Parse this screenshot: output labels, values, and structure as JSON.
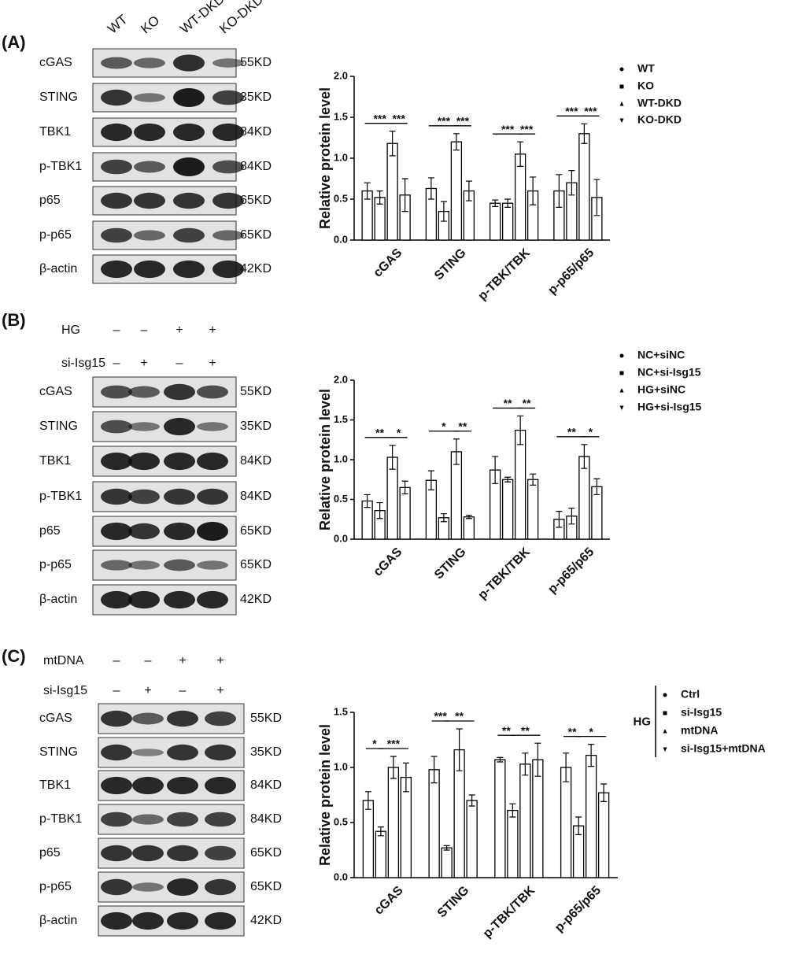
{
  "blots": [
    {
      "label": "(A)",
      "lanes": [
        "WT",
        "KO",
        "WT-DKD",
        "KO-DKD"
      ],
      "treatments": [],
      "proteins": [
        [
          "cGAS",
          "55KD"
        ],
        [
          "STING",
          "35KD"
        ],
        [
          "TBK1",
          "84KD"
        ],
        [
          "p-TBK1",
          "84KD"
        ],
        [
          "p65",
          "65KD"
        ],
        [
          "p-p65",
          "65KD"
        ],
        [
          "β-actin",
          "42KD"
        ]
      ]
    },
    {
      "label": "(B)",
      "lanes": [],
      "treatments": [
        [
          "HG",
          "–",
          "–",
          "+",
          "+"
        ],
        [
          "si-Isg15",
          "–",
          "+",
          "–",
          "+"
        ]
      ],
      "proteins": [
        [
          "cGAS",
          "55KD"
        ],
        [
          "STING",
          "35KD"
        ],
        [
          "TBK1",
          "84KD"
        ],
        [
          "p-TBK1",
          "84KD"
        ],
        [
          "p65",
          "65KD"
        ],
        [
          "p-p65",
          "65KD"
        ],
        [
          "β-actin",
          "42KD"
        ]
      ]
    },
    {
      "label": "(C)",
      "lanes": [],
      "treatments": [
        [
          "mtDNA",
          "–",
          "–",
          "+",
          "+"
        ],
        [
          "si-Isg15",
          "–",
          "+",
          "–",
          "+"
        ]
      ],
      "proteins": [
        [
          "cGAS",
          "55KD"
        ],
        [
          "STING",
          "35KD"
        ],
        [
          "TBK1",
          "84KD"
        ],
        [
          "p-TBK1",
          "84KD"
        ],
        [
          "p65",
          "65KD"
        ],
        [
          "p-p65",
          "65KD"
        ],
        [
          "β-actin",
          "42KD"
        ]
      ]
    }
  ],
  "chart_data": [
    {
      "type": "bar",
      "ylabel": "Relative protein level",
      "categories": [
        "cGAS",
        "STING",
        "p-TBK/TBK",
        "p-p65/p65"
      ],
      "ylim": [
        0,
        2.0
      ],
      "yticks": [
        {
          "value": 0,
          "label": "0.0"
        },
        {
          "value": 0.5,
          "label": "0.5"
        },
        {
          "value": 1.0,
          "label": "1.0"
        },
        {
          "value": 1.5,
          "label": "1.5"
        },
        {
          "value": 2.0,
          "label": "2.0"
        }
      ],
      "color": "#ffffff",
      "edgecolor": "#000000",
      "series": [
        {
          "name": "WT",
          "marker": "circle",
          "values": [
            0.6,
            0.63,
            0.45,
            0.6
          ],
          "errors": [
            0.1,
            0.13,
            0.04,
            0.2
          ]
        },
        {
          "name": "KO",
          "marker": "square",
          "values": [
            0.52,
            0.35,
            0.45,
            0.7
          ],
          "errors": [
            0.08,
            0.12,
            0.05,
            0.15
          ]
        },
        {
          "name": "WT-DKD",
          "marker": "triangle",
          "values": [
            1.18,
            1.2,
            1.05,
            1.3
          ],
          "errors": [
            0.15,
            0.1,
            0.15,
            0.12
          ]
        },
        {
          "name": "KO-DKD",
          "marker": "triangle-down",
          "values": [
            0.55,
            0.6,
            0.6,
            0.52
          ],
          "errors": [
            0.2,
            0.12,
            0.17,
            0.22
          ]
        }
      ],
      "significance": [
        [
          "***",
          "***"
        ],
        [
          "***",
          "***"
        ],
        [
          "***",
          "***"
        ],
        [
          "***",
          "***"
        ]
      ],
      "significance_pairs": [
        [
          0,
          2
        ],
        [
          2,
          3
        ]
      ]
    },
    {
      "type": "bar",
      "ylabel": "Relative protein level",
      "categories": [
        "cGAS",
        "STING",
        "p-TBK/TBK",
        "p-p65/p65"
      ],
      "ylim": [
        0,
        2.0
      ],
      "yticks": [
        {
          "value": 0,
          "label": "0.0"
        },
        {
          "value": 0.5,
          "label": "0.5"
        },
        {
          "value": 1.0,
          "label": "1.0"
        },
        {
          "value": 1.5,
          "label": "1.5"
        },
        {
          "value": 2.0,
          "label": "2.0"
        }
      ],
      "color": "#ffffff",
      "edgecolor": "#000000",
      "series": [
        {
          "name": "NC+siNC",
          "marker": "circle",
          "values": [
            0.48,
            0.74,
            0.87,
            0.25
          ],
          "errors": [
            0.08,
            0.12,
            0.17,
            0.1
          ]
        },
        {
          "name": "NC+si-Isg15",
          "marker": "square",
          "values": [
            0.36,
            0.27,
            0.75,
            0.29
          ],
          "errors": [
            0.1,
            0.05,
            0.03,
            0.1
          ]
        },
        {
          "name": "HG+siNC",
          "marker": "triangle",
          "values": [
            1.03,
            1.1,
            1.37,
            1.04
          ],
          "errors": [
            0.15,
            0.16,
            0.18,
            0.15
          ]
        },
        {
          "name": "HG+si-Isg15",
          "marker": "triangle-down",
          "values": [
            0.65,
            0.28,
            0.75,
            0.66
          ],
          "errors": [
            0.08,
            0.02,
            0.07,
            0.1
          ]
        }
      ],
      "significance": [
        [
          "**",
          "*"
        ],
        [
          "*",
          "**"
        ],
        [
          "**",
          "**"
        ],
        [
          "**",
          "*"
        ]
      ],
      "significance_pairs": [
        [
          0,
          2
        ],
        [
          2,
          3
        ]
      ]
    },
    {
      "type": "bar",
      "ylabel": "Relative protein level",
      "categories": [
        "cGAS",
        "STING",
        "p-TBK/TBK",
        "p-p65/p65"
      ],
      "ylim": [
        0,
        1.5
      ],
      "yticks": [
        {
          "value": 0,
          "label": "0.0"
        },
        {
          "value": 0.5,
          "label": "0.5"
        },
        {
          "value": 1.0,
          "label": "1.0"
        },
        {
          "value": 1.5,
          "label": "1.5"
        }
      ],
      "color": "#ffffff",
      "edgecolor": "#000000",
      "legend_group": "HG",
      "series": [
        {
          "name": "Ctrl",
          "marker": "circle",
          "values": [
            0.7,
            0.98,
            1.07,
            1.0
          ],
          "errors": [
            0.08,
            0.12,
            0.02,
            0.13
          ]
        },
        {
          "name": "si-Isg15",
          "marker": "square",
          "values": [
            0.42,
            0.27,
            0.61,
            0.47
          ],
          "errors": [
            0.04,
            0.02,
            0.06,
            0.08
          ]
        },
        {
          "name": "mtDNA",
          "marker": "triangle",
          "values": [
            1.0,
            1.16,
            1.03,
            1.11
          ],
          "errors": [
            0.1,
            0.19,
            0.1,
            0.1
          ]
        },
        {
          "name": "si-Isg15+mtDNA",
          "marker": "triangle-down",
          "values": [
            0.91,
            0.7,
            1.07,
            0.77
          ],
          "errors": [
            0.13,
            0.05,
            0.15,
            0.08
          ]
        }
      ],
      "significance": [
        [
          "*",
          "***"
        ],
        [
          "***",
          "**"
        ],
        [
          "**",
          "**"
        ],
        [
          "**",
          "*"
        ]
      ],
      "significance_pairs": [
        [
          0,
          1
        ],
        [
          1,
          3
        ]
      ]
    }
  ]
}
